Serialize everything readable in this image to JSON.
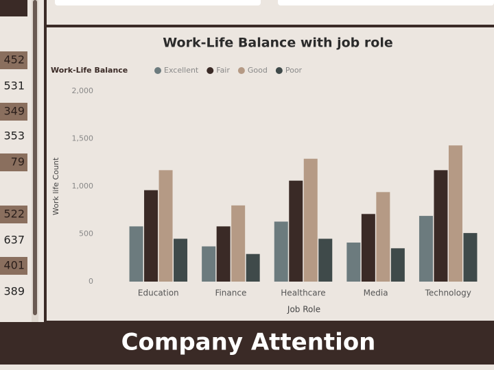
{
  "sidebar": {
    "items": [
      {
        "text": "452",
        "boxed": true
      },
      {
        "text": "531",
        "boxed": false
      },
      {
        "text": "349",
        "boxed": true
      },
      {
        "text": "353",
        "boxed": false
      },
      {
        "text": "79",
        "boxed": true
      },
      {
        "text": "522",
        "boxed": true
      },
      {
        "text": "637",
        "boxed": false
      },
      {
        "text": "401",
        "boxed": true
      },
      {
        "text": "389",
        "boxed": false
      }
    ]
  },
  "banner": {
    "title": "Company Attention"
  },
  "chart_data": {
    "type": "bar",
    "title": "Work-Life Balance with job role",
    "legend_title": "Work-Life Balance",
    "x_label": "Job Role",
    "y_label": "Work life Count",
    "categories": [
      "Education",
      "Finance",
      "Healthcare",
      "Media",
      "Technology"
    ],
    "series": [
      {
        "name": "Excellent",
        "color": "#6c7b7e",
        "values": [
          580,
          370,
          630,
          410,
          690
        ]
      },
      {
        "name": "Fair",
        "color": "#3a2a26",
        "values": [
          960,
          580,
          1060,
          710,
          1170
        ]
      },
      {
        "name": "Good",
        "color": "#b59a85",
        "values": [
          1170,
          800,
          1290,
          940,
          1430
        ]
      },
      {
        "name": "Poor",
        "color": "#3f4a4a",
        "values": [
          450,
          290,
          450,
          350,
          510
        ]
      }
    ],
    "ylim": [
      0,
      2000
    ],
    "yticks": [
      0,
      500,
      {
        "value": 1000,
        "label": "1,000"
      },
      {
        "value": 1500,
        "label": "1,500"
      },
      {
        "value": 2000,
        "label": "2,000"
      }
    ],
    "grid": false
  }
}
